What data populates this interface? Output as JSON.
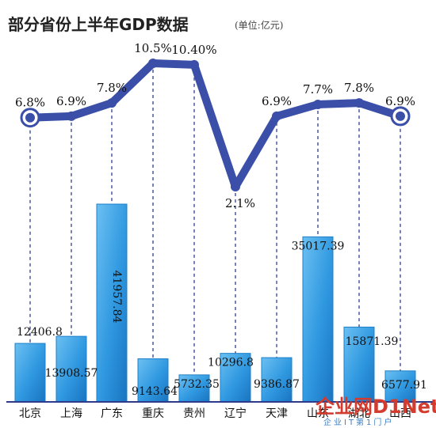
{
  "chart_data": {
    "type": "bar",
    "title": "部分省份上半年GDP数据",
    "unit_note": "(单位:亿元)",
    "categories": [
      "北京",
      "上海",
      "广东",
      "重庆",
      "贵州",
      "辽宁",
      "天津",
      "山东",
      "湖北",
      "山西"
    ],
    "series": [
      {
        "type": "bar",
        "values": [
          12406.8,
          13908.57,
          41957.84,
          9143.64,
          5732.35,
          10296.8,
          9386.87,
          35017.39,
          15871.39,
          6577.91
        ],
        "labels": [
          "12406.8",
          "13908.57",
          "41957.84",
          "9143.64",
          "5732.35",
          "10296.8",
          "9386.87",
          "35017.39",
          "15871.39",
          "6577.91"
        ]
      },
      {
        "type": "line",
        "values": [
          6.8,
          6.9,
          7.8,
          10.5,
          10.4,
          2.1,
          6.9,
          7.7,
          7.8,
          6.9
        ],
        "labels": [
          "6.8%",
          "6.9%",
          "7.8%",
          "10.5%",
          "10.40%",
          "2.1%",
          "6.9%",
          "7.7%",
          "7.8%",
          "6.9%"
        ]
      }
    ],
    "colors": {
      "bar": "#3aa3e6",
      "bar_dark": "#1e7fc8",
      "line": "#3b4fa8",
      "axis": "#2e3b8c",
      "dash": "#4a5aa0"
    },
    "watermark": {
      "main": "企业网D1Net",
      "sub": "企业IT第1门户"
    }
  }
}
